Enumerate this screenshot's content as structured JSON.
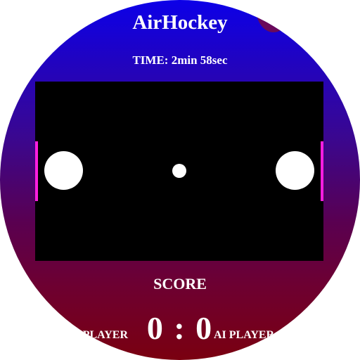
{
  "app": {
    "title": "AirHockey"
  },
  "timer": {
    "text": "TIME: 2min 58sec"
  },
  "rink": {
    "background": "#000000",
    "goal_color": "#ff1ee0",
    "mallet_color": "#ffffff",
    "puck_color": "#ffffff"
  },
  "scoreboard": {
    "label": "SCORE",
    "player_label": "PLAYER",
    "score_text": "0 : 0",
    "ai_label": "AI PLAYER",
    "player_score": 0,
    "ai_score": 0
  },
  "colors": {
    "gradient_top": "#0c00e8",
    "gradient_bottom": "#7a0010",
    "settings_button": "#6a0a5a",
    "text": "#ffffff"
  }
}
